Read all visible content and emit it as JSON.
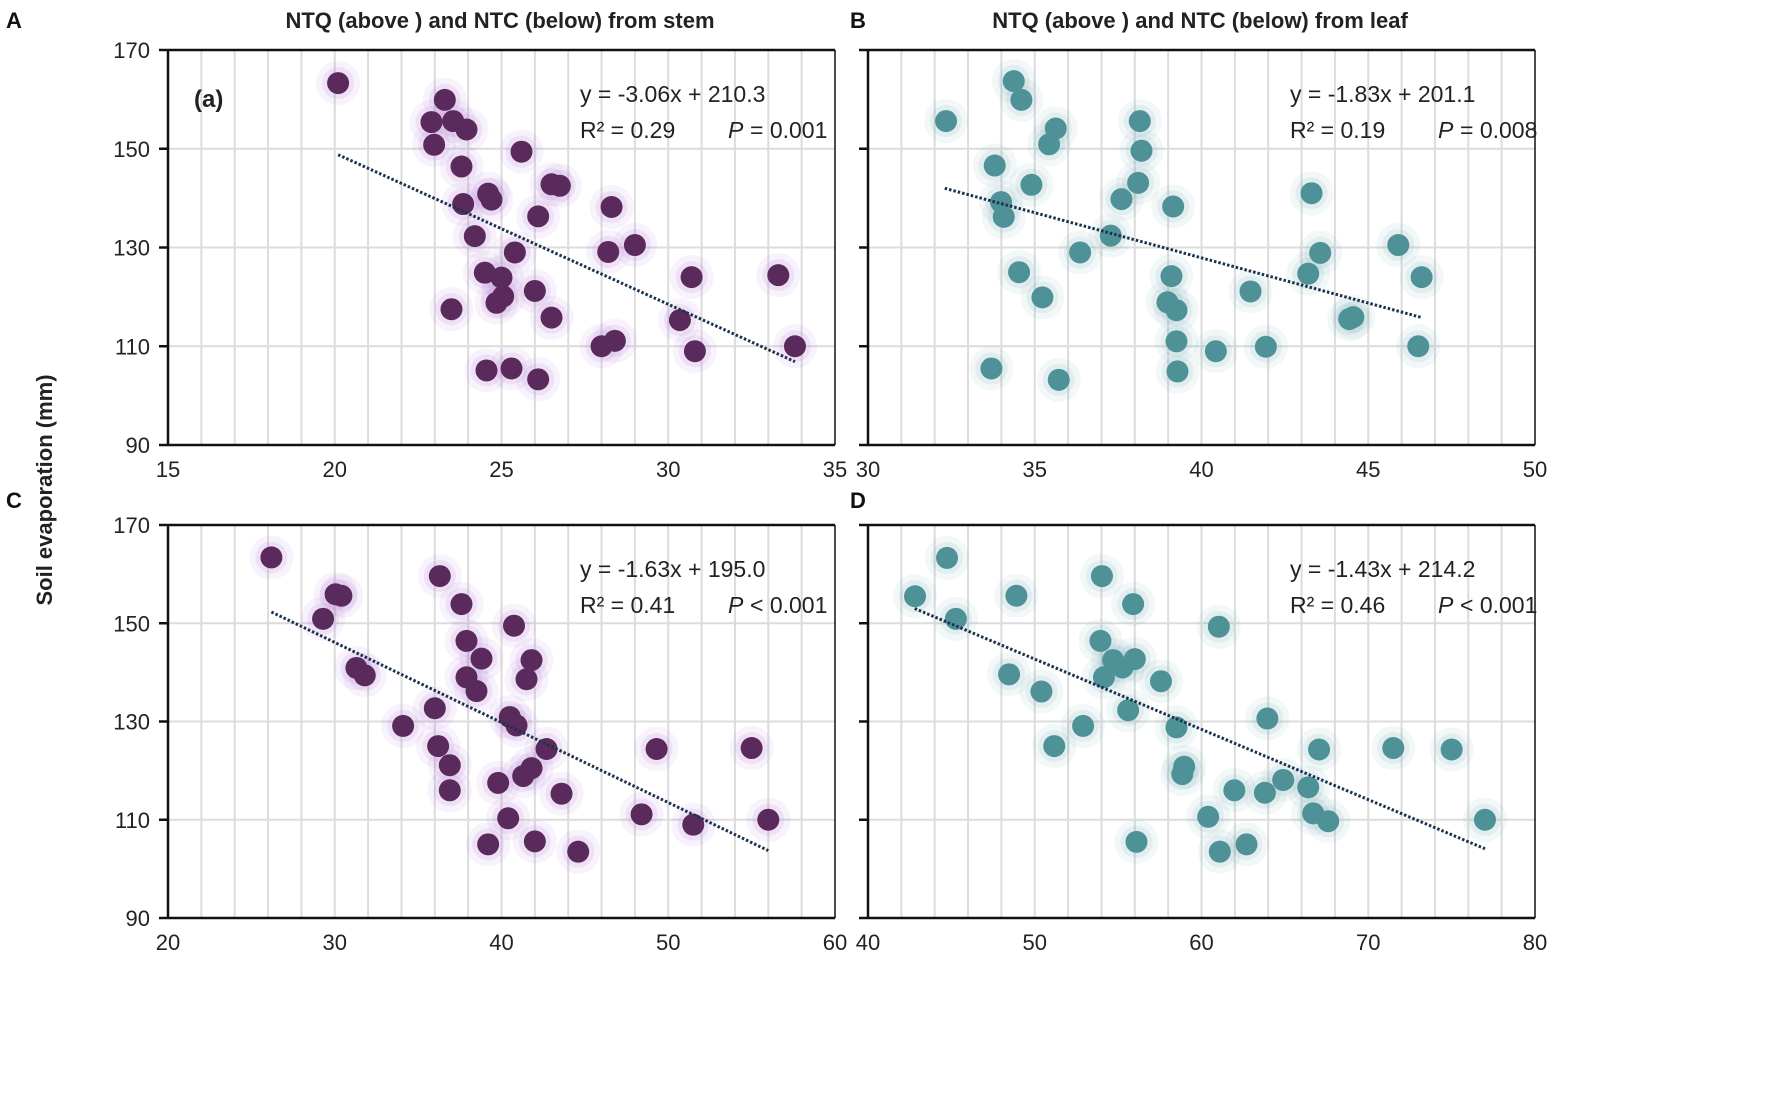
{
  "figure": {
    "y_axis_label": "Soil evaporation (mm)",
    "colors": {
      "stem_point": "#5b2a5c",
      "stem_glow": "#b57fd6",
      "leaf_point": "#4e9196",
      "leaf_glow": "#7fb3b6",
      "trend": "#1c3350",
      "grid": "#dcdcdc"
    }
  },
  "chart_data": [
    {
      "panel": "A",
      "type": "scatter",
      "title": "NTQ (above ) and NTC (below) from stem",
      "sublabel": "(a)",
      "xlabel": "",
      "ylabel": "Soil evaporation (mm)",
      "xlim": [
        15,
        35
      ],
      "ylim": [
        90,
        170
      ],
      "x_ticks": [
        "15",
        "20",
        "25",
        "30",
        "35"
      ],
      "y_ticks": [
        "90",
        "110",
        "130",
        "150",
        "170"
      ],
      "equation": "y = -3.06x + 210.3",
      "r2": "R² = 0.29",
      "p_label": "P",
      "p_value": "= 0.001",
      "trend": {
        "slope": -3.06,
        "intercept": 210.3,
        "x_range": [
          20.1,
          33.8
        ]
      },
      "series": "stem",
      "points": [
        [
          20.1,
          163.3
        ],
        [
          23.3,
          159.9
        ],
        [
          22.9,
          155.4
        ],
        [
          23.55,
          155.6
        ],
        [
          23.95,
          153.9
        ],
        [
          22.98,
          150.8
        ],
        [
          25.6,
          149.4
        ],
        [
          23.8,
          146.4
        ],
        [
          26.5,
          142.8
        ],
        [
          26.75,
          142.5
        ],
        [
          24.6,
          140.9
        ],
        [
          24.7,
          139.7
        ],
        [
          28.3,
          138.2
        ],
        [
          23.85,
          138.8
        ],
        [
          26.1,
          136.3
        ],
        [
          24.2,
          132.3
        ],
        [
          28.2,
          129.1
        ],
        [
          29.0,
          130.5
        ],
        [
          25.4,
          129.0
        ],
        [
          30.7,
          124.0
        ],
        [
          24.5,
          124.9
        ],
        [
          25.0,
          123.9
        ],
        [
          25.05,
          120.1
        ],
        [
          24.85,
          118.8
        ],
        [
          26.0,
          121.2
        ],
        [
          23.5,
          117.5
        ],
        [
          26.5,
          115.8
        ],
        [
          30.35,
          115.3
        ],
        [
          28.0,
          110.0
        ],
        [
          28.4,
          111.1
        ],
        [
          30.8,
          109.0
        ],
        [
          24.55,
          105.1
        ],
        [
          25.3,
          105.5
        ],
        [
          26.1,
          103.3
        ],
        [
          33.3,
          124.4
        ],
        [
          33.8,
          110.0
        ]
      ]
    },
    {
      "panel": "B",
      "type": "scatter",
      "title": "NTQ (above ) and NTC (below) from leaf",
      "xlabel": "",
      "ylabel": "",
      "xlim": [
        30,
        50
      ],
      "ylim": [
        90,
        170
      ],
      "x_ticks": [
        "30",
        "35",
        "40",
        "45",
        "50"
      ],
      "y_ticks": [],
      "equation": "y = -1.83x + 201.1",
      "r2": "R² = 0.19",
      "p_label": "P",
      "p_value": "= 0.008",
      "trend": {
        "slope": -1.83,
        "intercept": 201.1,
        "x_range": [
          32.3,
          46.6
        ]
      },
      "series": "leaf",
      "points": [
        [
          34.37,
          163.7
        ],
        [
          34.6,
          159.9
        ],
        [
          32.34,
          155.6
        ],
        [
          35.63,
          154.1
        ],
        [
          38.15,
          155.6
        ],
        [
          35.43,
          150.9
        ],
        [
          38.2,
          149.6
        ],
        [
          33.8,
          146.6
        ],
        [
          34.9,
          142.7
        ],
        [
          38.1,
          143.1
        ],
        [
          43.3,
          141.0
        ],
        [
          37.6,
          139.8
        ],
        [
          39.15,
          138.3
        ],
        [
          33.99,
          139.2
        ],
        [
          34.07,
          136.2
        ],
        [
          37.28,
          132.4
        ],
        [
          36.36,
          129.0
        ],
        [
          43.56,
          128.9
        ],
        [
          34.53,
          125.0
        ],
        [
          39.1,
          124.2
        ],
        [
          43.2,
          124.7
        ],
        [
          35.23,
          119.9
        ],
        [
          41.47,
          121.1
        ],
        [
          38.98,
          118.9
        ],
        [
          39.25,
          117.3
        ],
        [
          44.43,
          115.5
        ],
        [
          44.55,
          115.9
        ],
        [
          39.25,
          111.0
        ],
        [
          40.43,
          109.0
        ],
        [
          41.93,
          109.9
        ],
        [
          33.7,
          105.5
        ],
        [
          39.28,
          104.9
        ],
        [
          35.72,
          103.2
        ],
        [
          45.9,
          130.5
        ],
        [
          46.6,
          124.0
        ],
        [
          46.5,
          110.0
        ]
      ]
    },
    {
      "panel": "C",
      "type": "scatter",
      "title": "",
      "xlabel": "",
      "ylabel": "Soil evaporation (mm)",
      "xlim": [
        20,
        60
      ],
      "ylim": [
        90,
        170
      ],
      "x_ticks": [
        "20",
        "30",
        "40",
        "50",
        "60"
      ],
      "y_ticks": [
        "90",
        "110",
        "130",
        "150",
        "170"
      ],
      "equation": "y = -1.63x + 195.0",
      "r2": "R² = 0.41",
      "p_label": "P",
      "p_value": "< 0.001",
      "trend": {
        "slope": -1.63,
        "intercept": 195.0,
        "x_range": [
          26.2,
          56.0
        ]
      },
      "series": "stem",
      "points": [
        [
          26.2,
          163.4
        ],
        [
          30.05,
          155.9
        ],
        [
          30.4,
          155.6
        ],
        [
          29.3,
          150.9
        ],
        [
          36.3,
          159.6
        ],
        [
          37.6,
          153.9
        ],
        [
          40.75,
          149.5
        ],
        [
          37.9,
          146.4
        ],
        [
          38.8,
          142.8
        ],
        [
          41.8,
          142.5
        ],
        [
          31.3,
          140.9
        ],
        [
          31.8,
          139.4
        ],
        [
          37.9,
          139.0
        ],
        [
          41.5,
          138.6
        ],
        [
          38.5,
          136.2
        ],
        [
          36.0,
          132.7
        ],
        [
          34.1,
          129.1
        ],
        [
          40.5,
          130.9
        ],
        [
          40.9,
          129.2
        ],
        [
          36.2,
          125.0
        ],
        [
          42.7,
          124.4
        ],
        [
          49.3,
          124.4
        ],
        [
          36.9,
          121.1
        ],
        [
          41.8,
          120.5
        ],
        [
          41.3,
          118.9
        ],
        [
          39.8,
          117.5
        ],
        [
          36.9,
          116.0
        ],
        [
          43.6,
          115.3
        ],
        [
          48.4,
          111.1
        ],
        [
          40.4,
          110.3
        ],
        [
          51.5,
          109.0
        ],
        [
          39.2,
          105.0
        ],
        [
          42.0,
          105.6
        ],
        [
          44.6,
          103.5
        ],
        [
          55.0,
          124.6
        ],
        [
          56.0,
          110.0
        ]
      ]
    },
    {
      "panel": "D",
      "type": "scatter",
      "title": "",
      "xlabel": "",
      "ylabel": "",
      "xlim": [
        40,
        80
      ],
      "ylim": [
        90,
        170
      ],
      "x_ticks": [
        "40",
        "50",
        "60",
        "70",
        "80"
      ],
      "y_ticks": [],
      "equation": "y = -1.43x + 214.2",
      "r2": "R² = 0.46",
      "p_label": "P",
      "p_value": "< 0.001",
      "trend": {
        "slope": -1.43,
        "intercept": 214.2,
        "x_range": [
          42.8,
          77.0
        ]
      },
      "series": "leaf",
      "points": [
        [
          44.74,
          163.3
        ],
        [
          42.82,
          155.5
        ],
        [
          45.27,
          150.9
        ],
        [
          48.9,
          155.6
        ],
        [
          54.03,
          159.6
        ],
        [
          55.9,
          153.9
        ],
        [
          61.04,
          149.3
        ],
        [
          53.94,
          146.4
        ],
        [
          54.7,
          142.5
        ],
        [
          55.26,
          141.0
        ],
        [
          56.0,
          142.7
        ],
        [
          54.15,
          139.0
        ],
        [
          48.46,
          139.6
        ],
        [
          57.57,
          138.2
        ],
        [
          50.4,
          136.1
        ],
        [
          55.6,
          132.3
        ],
        [
          52.9,
          129.1
        ],
        [
          58.5,
          128.8
        ],
        [
          63.95,
          130.6
        ],
        [
          51.17,
          125.0
        ],
        [
          67.05,
          124.3
        ],
        [
          58.96,
          120.8
        ],
        [
          58.85,
          119.3
        ],
        [
          64.9,
          118.1
        ],
        [
          66.4,
          116.6
        ],
        [
          61.97,
          116.0
        ],
        [
          63.8,
          115.5
        ],
        [
          66.7,
          111.3
        ],
        [
          67.6,
          109.7
        ],
        [
          60.4,
          110.6
        ],
        [
          71.5,
          124.6
        ],
        [
          75.0,
          124.3
        ],
        [
          77.0,
          110.0
        ],
        [
          56.1,
          105.5
        ],
        [
          61.1,
          103.5
        ],
        [
          62.7,
          105.0
        ]
      ]
    }
  ]
}
